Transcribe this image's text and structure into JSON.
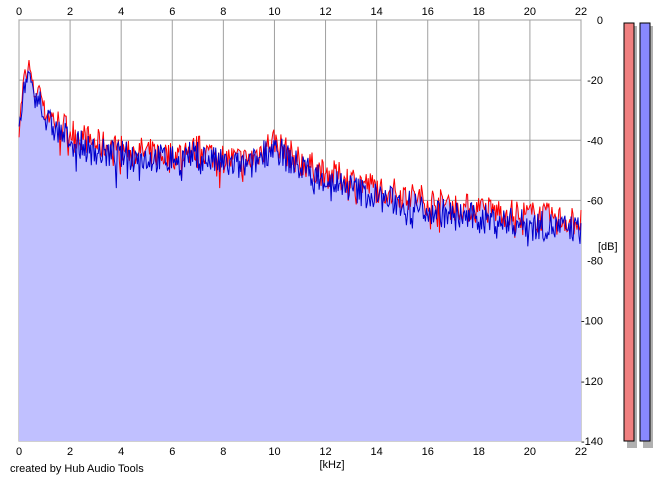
{
  "credit": "created by Hub Audio Tools",
  "chart_data": {
    "type": "line",
    "xlabel": "[kHz]",
    "ylabel": "[dB]",
    "xlim": [
      0,
      22
    ],
    "ylim": [
      -140,
      0
    ],
    "x_ticks": [
      "0",
      "2",
      "4",
      "6",
      "8",
      "10",
      "12",
      "14",
      "16",
      "18",
      "20",
      "22"
    ],
    "y_ticks": [
      "0",
      "-20",
      "-40",
      "-60",
      "-80",
      "-100",
      "-120",
      "-140"
    ],
    "grid": true,
    "series": [
      {
        "color": "#ff0000",
        "x": [
          0.0,
          0.2,
          0.4,
          0.6,
          0.8,
          1.0,
          1.5,
          2.0,
          3.0,
          4.0,
          5.0,
          6.0,
          7.0,
          8.0,
          9.0,
          9.8,
          10.0,
          10.5,
          11.0,
          12.0,
          13.0,
          14.0,
          15.0,
          16.0,
          17.0,
          18.0,
          19.0,
          20.0,
          21.0,
          22.0
        ],
        "values": [
          -36,
          -19,
          -15,
          -25,
          -22,
          -30,
          -34,
          -37,
          -41,
          -43,
          -44,
          -45,
          -43,
          -46,
          -47,
          -41,
          -40,
          -44,
          -47,
          -51,
          -53,
          -56,
          -58,
          -60,
          -62,
          -63,
          -64,
          -65,
          -66,
          -67
        ]
      },
      {
        "color": "#0000cc",
        "x": [
          0.0,
          0.2,
          0.4,
          0.6,
          0.8,
          1.0,
          1.5,
          2.0,
          3.0,
          4.0,
          5.0,
          6.0,
          7.0,
          8.0,
          9.0,
          9.8,
          10.0,
          10.5,
          11.0,
          12.0,
          13.0,
          14.0,
          15.0,
          16.0,
          17.0,
          18.0,
          19.0,
          20.0,
          21.0,
          22.0
        ],
        "values": [
          -38,
          -22,
          -18,
          -27,
          -25,
          -33,
          -37,
          -40,
          -44,
          -45,
          -46,
          -46,
          -45,
          -48,
          -49,
          -43,
          -42,
          -46,
          -49,
          -53,
          -56,
          -59,
          -61,
          -63,
          -65,
          -66,
          -67,
          -68,
          -69,
          -70
        ]
      }
    ],
    "fill_color": "#c0c0ff",
    "meters": [
      {
        "color": "#f08080"
      },
      {
        "color": "#8888ff"
      }
    ]
  }
}
